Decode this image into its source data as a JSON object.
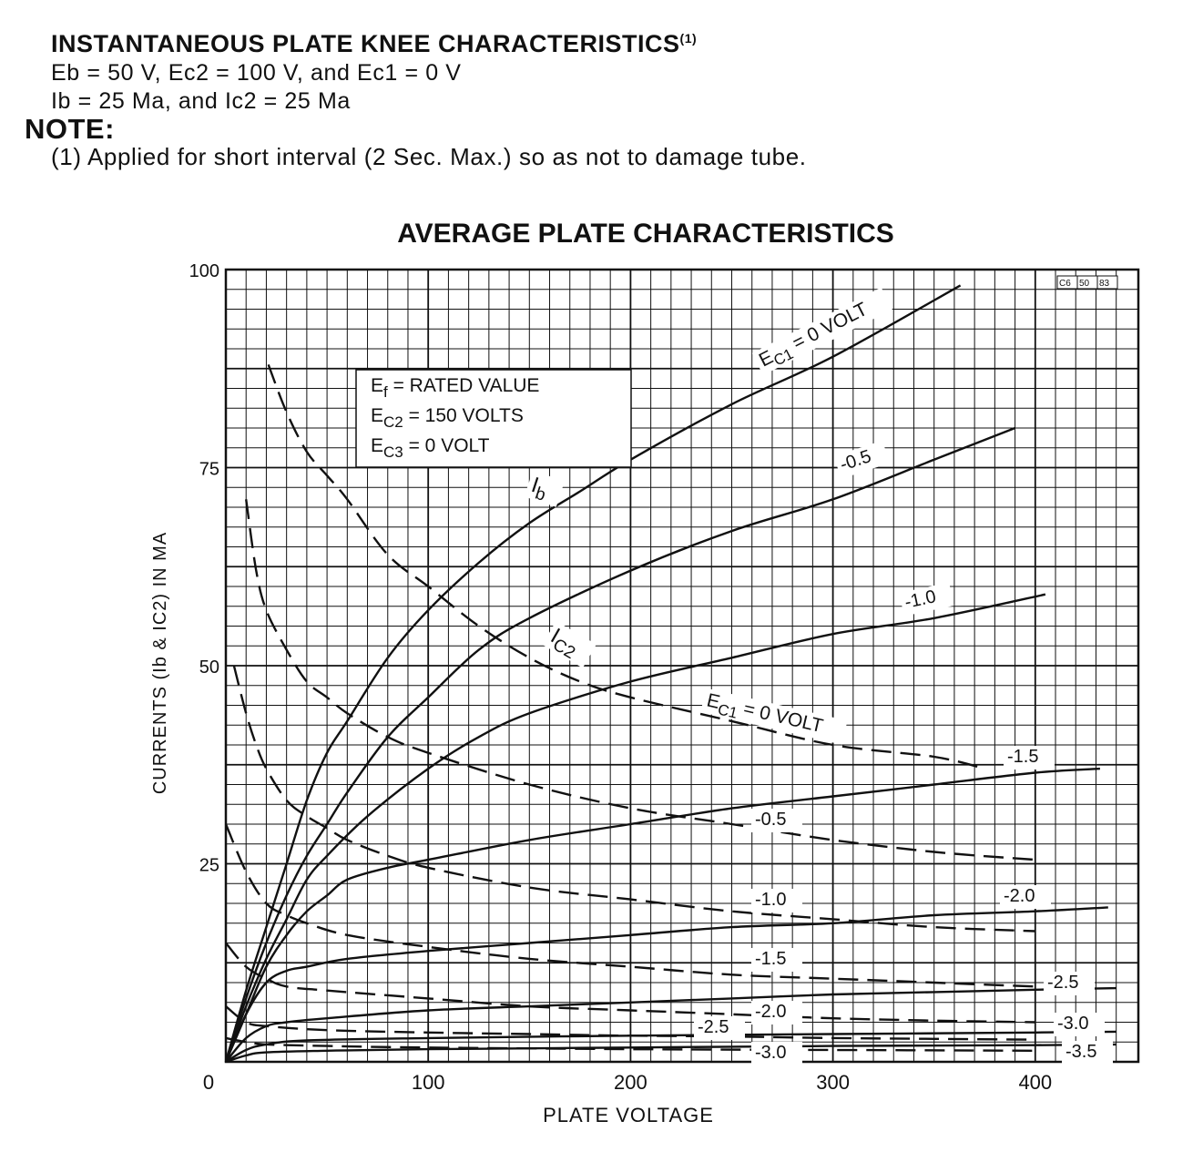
{
  "header": {
    "knee_title": "INSTANTANEOUS PLATE KNEE CHARACTERISTICS",
    "knee_title_ref": "(1)",
    "conditions_1": "Eb = 50 V, Ec2 = 100 V, and Ec1 = 0 V",
    "conditions_2": "Ib = 25 Ma, and Ic2 = 25 Ma",
    "note_label": "NOTE:",
    "note_text": "(1) Applied for short interval (2 Sec. Max.) so as not to damage tube."
  },
  "chart_data": {
    "type": "line",
    "title": "AVERAGE PLATE CHARACTERISTICS",
    "xlabel": "PLATE VOLTAGE",
    "ylabel": "CURRENTS (Ib & IC2) IN MA",
    "xlim": [
      0,
      450
    ],
    "ylim": [
      0,
      100
    ],
    "xticks": [
      0,
      100,
      200,
      300,
      400
    ],
    "yticks": [
      0,
      25,
      50,
      75,
      100
    ],
    "grid": true,
    "drawing_code": "C6 50 83",
    "conditions_box": [
      "Ef = RATED VALUE",
      "EC2 = 150 VOLTS",
      "EC3 = 0 VOLT"
    ],
    "curve_labels": {
      "ib": "Ib",
      "ic2": "IC2",
      "ec1_zero_plate": "EC1 = 0 VOLT",
      "ec1_zero_screen": "EC1 = 0 VOLT"
    },
    "series": [
      {
        "group": "Ib",
        "style": "solid",
        "label": "EC1 = 0 VOLT",
        "x": [
          0,
          10,
          20,
          30,
          40,
          50,
          60,
          80,
          100,
          125,
          150,
          175,
          200,
          250,
          300,
          363
        ],
        "y": [
          0,
          9,
          17,
          25,
          33,
          39,
          43,
          51,
          57,
          63,
          68,
          72,
          76,
          83,
          89,
          98
        ]
      },
      {
        "group": "Ib",
        "style": "solid",
        "label": "-0.5",
        "x": [
          0,
          10,
          20,
          30,
          40,
          50,
          60,
          80,
          100,
          125,
          150,
          200,
          250,
          300,
          350,
          390
        ],
        "y": [
          0,
          8,
          15,
          21,
          26,
          30,
          34,
          41,
          46,
          52,
          56,
          62,
          67,
          71,
          76,
          80
        ]
      },
      {
        "group": "Ib",
        "style": "solid",
        "label": "-1.0",
        "x": [
          0,
          10,
          20,
          30,
          40,
          50,
          70,
          100,
          125,
          150,
          200,
          250,
          300,
          350,
          405
        ],
        "y": [
          0,
          7,
          13,
          18,
          23,
          26,
          31,
          37,
          41,
          44,
          48,
          51,
          54,
          56,
          59
        ]
      },
      {
        "group": "Ib",
        "style": "solid",
        "label": "-1.5",
        "x": [
          0,
          10,
          20,
          30,
          40,
          50,
          60,
          80,
          100,
          150,
          200,
          250,
          300,
          350,
          400,
          432
        ],
        "y": [
          0,
          6,
          12,
          16,
          19,
          21,
          23,
          24.5,
          25.5,
          28,
          30,
          32,
          33.5,
          35,
          36.5,
          37
        ]
      },
      {
        "group": "Ib",
        "style": "solid",
        "label": "-2.0",
        "x": [
          0,
          10,
          20,
          30,
          40,
          60,
          100,
          150,
          200,
          250,
          300,
          350,
          400,
          436
        ],
        "y": [
          0,
          6,
          10,
          11.5,
          12,
          13,
          14,
          15,
          16,
          17,
          17.5,
          18.5,
          19,
          19.5
        ]
      },
      {
        "group": "Ib",
        "style": "solid",
        "label": "-2.5",
        "x": [
          0,
          10,
          20,
          30,
          50,
          100,
          150,
          200,
          250,
          300,
          350,
          400,
          440
        ],
        "y": [
          0,
          3,
          4.5,
          5,
          5.5,
          6.5,
          7,
          7.5,
          8,
          8.5,
          8.8,
          9.1,
          9.3
        ]
      },
      {
        "group": "Ib",
        "style": "solid",
        "label": "-3.0",
        "x": [
          0,
          10,
          20,
          40,
          100,
          200,
          300,
          400,
          440
        ],
        "y": [
          0,
          1.5,
          2.2,
          2.7,
          3.0,
          3.3,
          3.5,
          3.7,
          3.8
        ]
      },
      {
        "group": "Ib",
        "style": "solid",
        "label": "-3.5",
        "x": [
          0,
          10,
          20,
          50,
          100,
          200,
          300,
          400,
          440
        ],
        "y": [
          0,
          0.8,
          1.2,
          1.4,
          1.6,
          1.8,
          2.0,
          2.1,
          2.2
        ]
      },
      {
        "group": "IC2",
        "style": "dashed",
        "label": "EC1 = 0 VOLT",
        "x": [
          21,
          30,
          40,
          50,
          60,
          80,
          100,
          125,
          150,
          175,
          200,
          250,
          300,
          350,
          375
        ],
        "y": [
          88,
          82,
          77,
          74,
          71,
          64,
          60,
          55,
          51,
          48,
          46,
          43,
          40,
          38.5,
          37
        ]
      },
      {
        "group": "IC2",
        "style": "dashed",
        "label": "-0.5",
        "x": [
          10,
          15,
          20,
          30,
          40,
          50,
          60,
          80,
          100,
          150,
          200,
          250,
          300,
          350,
          400
        ],
        "y": [
          71,
          62,
          57,
          52,
          48,
          46,
          44,
          41,
          39,
          35,
          32,
          30,
          28,
          26.5,
          25.5
        ]
      },
      {
        "group": "IC2",
        "style": "dashed",
        "label": "-1.0",
        "x": [
          4,
          10,
          15,
          20,
          30,
          40,
          50,
          60,
          80,
          100,
          150,
          200,
          250,
          300,
          350,
          400
        ],
        "y": [
          50,
          44,
          40,
          37,
          33,
          31,
          29.5,
          28,
          26,
          24.5,
          22,
          20.5,
          19,
          18,
          17,
          16.5
        ]
      },
      {
        "group": "IC2",
        "style": "dashed",
        "label": "-1.5",
        "x": [
          0,
          10,
          20,
          30,
          40,
          60,
          100,
          150,
          200,
          250,
          300,
          350,
          400
        ],
        "y": [
          30,
          24,
          20,
          18.5,
          17.5,
          16,
          14.5,
          13,
          12,
          11,
          10.5,
          10,
          9.5
        ]
      },
      {
        "group": "IC2",
        "style": "dashed",
        "label": "-2.0",
        "x": [
          0,
          10,
          20,
          30,
          50,
          100,
          150,
          200,
          250,
          300,
          350,
          400
        ],
        "y": [
          15,
          12,
          10.5,
          9.5,
          9,
          8,
          7,
          6.5,
          6,
          5.5,
          5.2,
          5
        ]
      },
      {
        "group": "IC2",
        "style": "dashed",
        "label": "-2.5",
        "x": [
          0,
          10,
          20,
          50,
          100,
          150,
          200,
          250,
          300,
          350,
          400
        ],
        "y": [
          7,
          5,
          4.5,
          4,
          3.7,
          3.5,
          3.3,
          3.2,
          3.0,
          2.9,
          2.8
        ]
      },
      {
        "group": "IC2",
        "style": "dashed",
        "label": "-3.0",
        "x": [
          0,
          10,
          20,
          50,
          100,
          200,
          300,
          400
        ],
        "y": [
          3,
          2.5,
          2.2,
          2.0,
          1.8,
          1.6,
          1.5,
          1.4
        ]
      }
    ]
  },
  "colors": {
    "ink": "#111111",
    "paper": "#ffffff"
  }
}
